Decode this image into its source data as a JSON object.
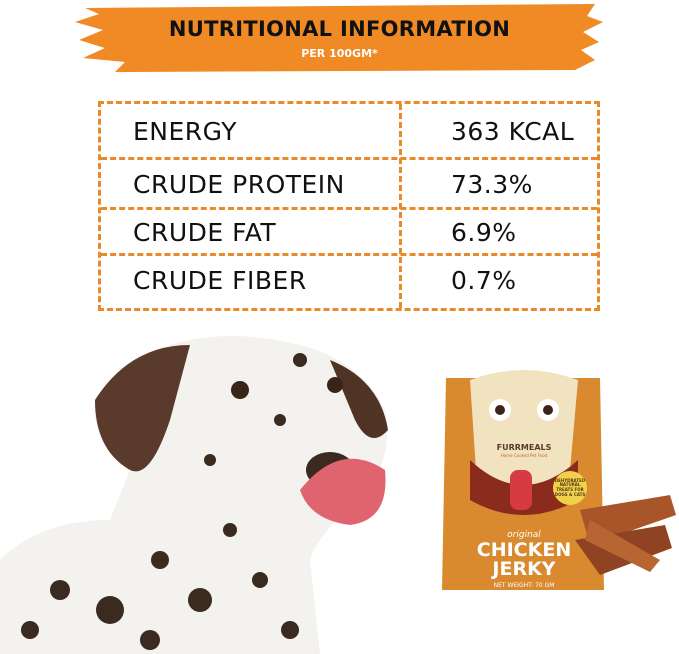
{
  "header": {
    "title": "NUTRITIONAL INFORMATION",
    "subtitle": "PER 100GM*"
  },
  "nutrition": {
    "rows": [
      {
        "label": "ENERGY",
        "value": "363 KCAL"
      },
      {
        "label": "CRUDE PROTEIN",
        "value": "73.3%"
      },
      {
        "label": "CRUDE FAT",
        "value": "6.9%"
      },
      {
        "label": "CRUDE FIBER",
        "value": "0.7%"
      }
    ]
  },
  "product": {
    "brand": "FURRMEALS",
    "tagline": "Home Cooked Pet Food",
    "badge": "DEHYDRATED NATURAL TREATS FOR DOGS & CATS",
    "variant": "original",
    "name_line1": "CHICKEN",
    "name_line2": "JERKY",
    "net_weight": "NET WEIGHT: 70 GM"
  },
  "colors": {
    "accent": "#ef8a24",
    "pouch": "#d9892e"
  }
}
